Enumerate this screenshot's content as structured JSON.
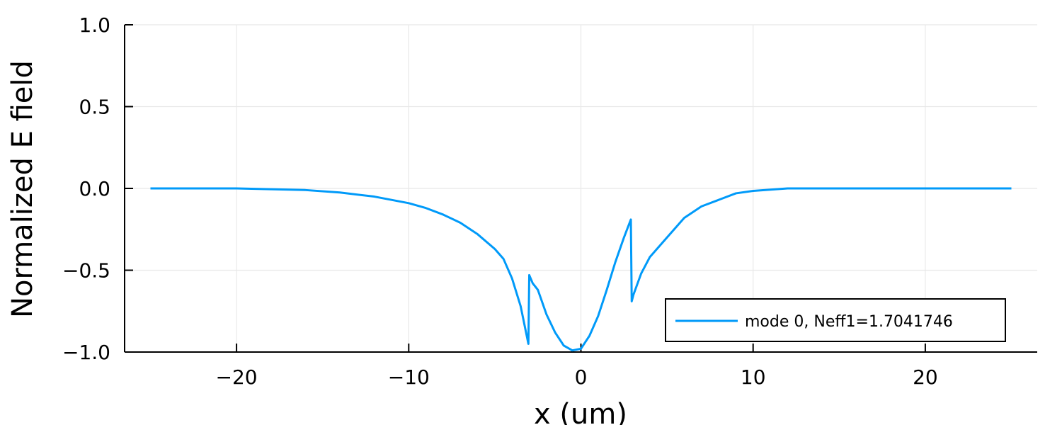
{
  "chart_data": {
    "type": "line",
    "xlabel": "x (um)",
    "ylabel": "Normalized E field",
    "xlim": [
      -26.5,
      26.5
    ],
    "ylim": [
      -1.0,
      1.0
    ],
    "xticks": [
      -20,
      -10,
      0,
      10,
      20
    ],
    "xtick_labels": [
      "−20",
      "−10",
      "0",
      "10",
      "20"
    ],
    "yticks": [
      -1.0,
      -0.5,
      0.0,
      0.5,
      1.0
    ],
    "ytick_labels": [
      "−1.0",
      "−0.5",
      "0.0",
      "0.5",
      "1.0"
    ],
    "grid": true,
    "legend_position": "bottom-right",
    "series": [
      {
        "name": "mode 0, Neff1=1.7041746",
        "color": "#009af9",
        "x": [
          -25,
          -22,
          -20,
          -18,
          -16,
          -14,
          -12,
          -10,
          -9,
          -8,
          -7,
          -6,
          -5,
          -4.5,
          -4,
          -3.5,
          -3.05,
          -3.0,
          -2.8,
          -2.5,
          -2,
          -1.5,
          -1,
          -0.5,
          0,
          0.5,
          1,
          1.5,
          2,
          2.5,
          2.9,
          2.95,
          3.05,
          3.5,
          4,
          5,
          6,
          7,
          8,
          9,
          10,
          12,
          14,
          16,
          18,
          20,
          22,
          25
        ],
        "y": [
          0.0,
          0.0,
          0.0,
          -0.005,
          -0.01,
          -0.025,
          -0.05,
          -0.09,
          -0.12,
          -0.16,
          -0.21,
          -0.28,
          -0.37,
          -0.43,
          -0.55,
          -0.72,
          -0.95,
          -0.53,
          -0.58,
          -0.62,
          -0.77,
          -0.88,
          -0.96,
          -0.99,
          -0.98,
          -0.9,
          -0.78,
          -0.62,
          -0.45,
          -0.3,
          -0.19,
          -0.69,
          -0.65,
          -0.52,
          -0.42,
          -0.3,
          -0.18,
          -0.11,
          -0.07,
          -0.03,
          -0.015,
          0.0,
          0.0,
          0.0,
          0.0,
          0.0,
          0.0,
          0.0
        ]
      }
    ]
  }
}
